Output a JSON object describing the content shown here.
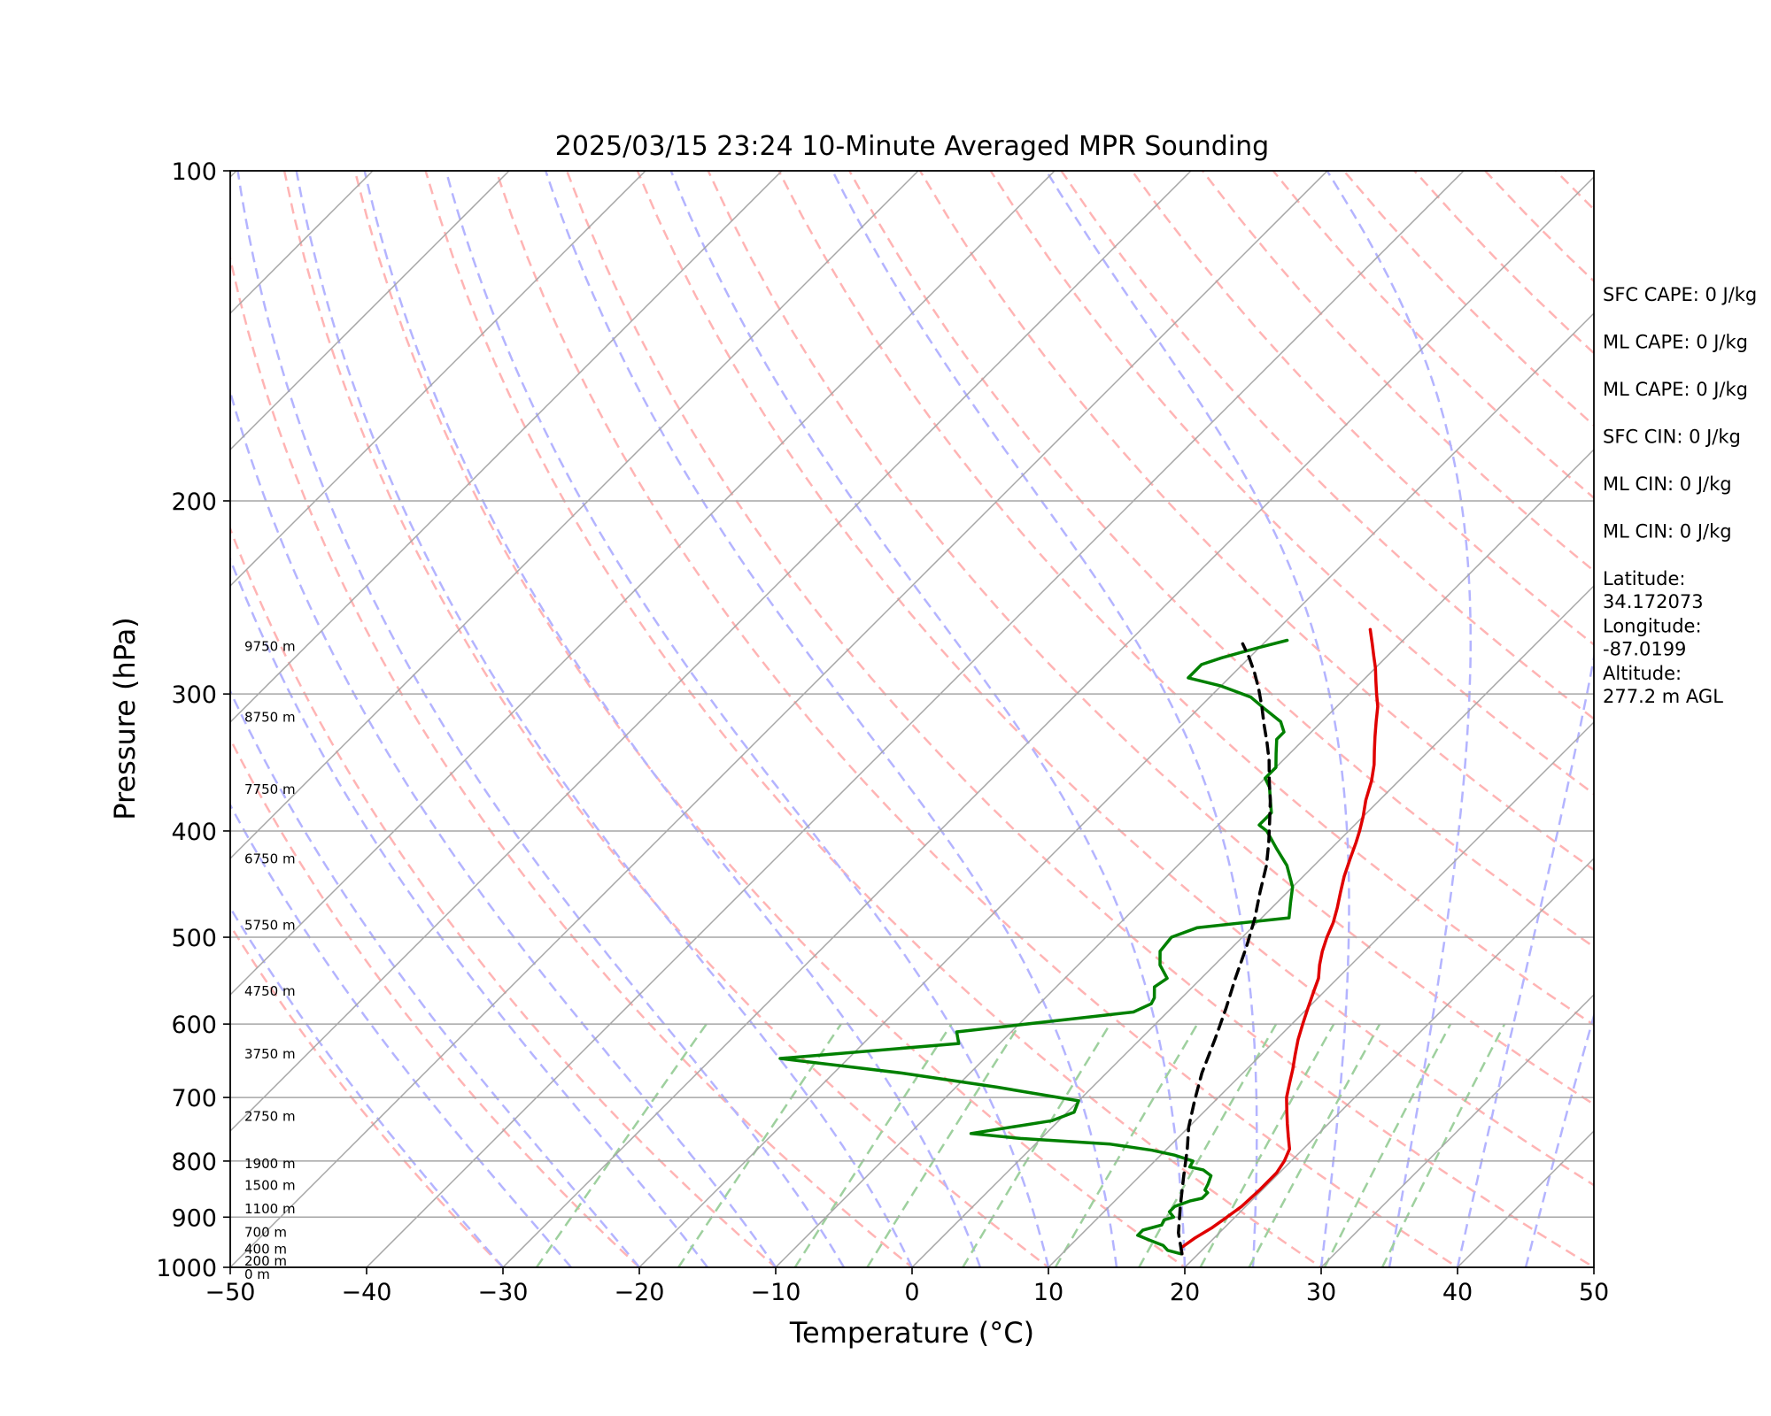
{
  "chart_data": {
    "type": "line",
    "title": "2025/03/15 23:24 10-Minute Averaged MPR Sounding",
    "xlabel": "Temperature (°C)",
    "ylabel": "Pressure (hPa)",
    "xlim": [
      -50,
      50
    ],
    "ylim": [
      1000,
      100
    ],
    "y_scale": "log",
    "grid": true,
    "x_ticks": [
      "−50",
      "−40",
      "−30",
      "−20",
      "−10",
      "0",
      "10",
      "20",
      "30",
      "40",
      "50"
    ],
    "y_ticks": [
      "100",
      "200",
      "300",
      "400",
      "500",
      "600",
      "700",
      "800",
      "900",
      "1000"
    ],
    "series": [
      {
        "color": "#e00000",
        "points": [
          [
            18.8,
            972
          ],
          [
            18.3,
            960
          ],
          [
            18.6,
            940
          ],
          [
            19.1,
            920
          ],
          [
            19.4,
            900
          ],
          [
            19.7,
            880
          ],
          [
            19.8,
            850
          ],
          [
            19.8,
            820
          ],
          [
            19.5,
            800
          ],
          [
            19.0,
            780
          ],
          [
            18.0,
            760
          ],
          [
            17.0,
            740
          ],
          [
            16.0,
            720
          ],
          [
            15.0,
            700
          ],
          [
            14.2,
            680
          ],
          [
            13.4,
            660
          ],
          [
            12.5,
            640
          ],
          [
            11.6,
            620
          ],
          [
            10.8,
            600
          ],
          [
            10.0,
            580
          ],
          [
            9.2,
            560
          ],
          [
            8.6,
            545
          ],
          [
            7.7,
            530
          ],
          [
            6.9,
            515
          ],
          [
            6.2,
            500
          ],
          [
            5.6,
            485
          ],
          [
            4.8,
            470
          ],
          [
            3.9,
            455
          ],
          [
            3.0,
            440
          ],
          [
            2.2,
            425
          ],
          [
            1.4,
            410
          ],
          [
            0.8,
            400
          ],
          [
            0.0,
            388
          ],
          [
            -1.0,
            375
          ],
          [
            -2.0,
            360
          ],
          [
            -3.0,
            348
          ],
          [
            -4.0,
            338
          ],
          [
            -5.0,
            328
          ],
          [
            -6.0,
            318
          ],
          [
            -7.0,
            308
          ],
          [
            -8.0,
            300
          ],
          [
            -9.0,
            292
          ],
          [
            -10.0,
            284
          ],
          [
            -11.0,
            277
          ],
          [
            -12.0,
            270
          ],
          [
            -13.2,
            262
          ]
        ]
      },
      {
        "color": "#008000",
        "points": [
          [
            18.7,
            972
          ],
          [
            17.5,
            965
          ],
          [
            16.8,
            955
          ],
          [
            15.5,
            945
          ],
          [
            14.2,
            935
          ],
          [
            14.2,
            925
          ],
          [
            15.2,
            915
          ],
          [
            15.0,
            905
          ],
          [
            15.5,
            900
          ],
          [
            14.8,
            890
          ],
          [
            14.8,
            880
          ],
          [
            15.5,
            870
          ],
          [
            16.2,
            865
          ],
          [
            16.2,
            855
          ],
          [
            15.8,
            850
          ],
          [
            15.6,
            840
          ],
          [
            15.2,
            825
          ],
          [
            14.2,
            815
          ],
          [
            13.0,
            810
          ],
          [
            12.8,
            800
          ],
          [
            11.0,
            790
          ],
          [
            9.0,
            782
          ],
          [
            5.5,
            772
          ],
          [
            -1.5,
            763
          ],
          [
            -5.5,
            755
          ],
          [
            -0.5,
            735
          ],
          [
            0.5,
            722
          ],
          [
            0.0,
            705
          ],
          [
            -7.0,
            685
          ],
          [
            -15.0,
            665
          ],
          [
            -25.0,
            645
          ],
          [
            -13.0,
            625
          ],
          [
            -14.0,
            610
          ],
          [
            -2.5,
            585
          ],
          [
            -1.8,
            575
          ],
          [
            -2.0,
            568
          ],
          [
            -2.8,
            555
          ],
          [
            -2.5,
            545
          ],
          [
            -4.0,
            530
          ],
          [
            -5.0,
            515
          ],
          [
            -5.2,
            500
          ],
          [
            -4.0,
            490
          ],
          [
            2.0,
            480
          ],
          [
            1.0,
            465
          ],
          [
            0.0,
            450
          ],
          [
            -2.0,
            430
          ],
          [
            -4.0,
            415
          ],
          [
            -6.0,
            400
          ],
          [
            -7.0,
            395
          ],
          [
            -7.0,
            385
          ],
          [
            -8.0,
            375
          ],
          [
            -9.0,
            365
          ],
          [
            -10.0,
            358
          ],
          [
            -10.0,
            350
          ],
          [
            -11.0,
            340
          ],
          [
            -12.0,
            330
          ],
          [
            -12.0,
            325
          ],
          [
            -13.0,
            318
          ],
          [
            -15.0,
            310
          ],
          [
            -17.0,
            302
          ],
          [
            -20.0,
            295
          ],
          [
            -23.0,
            290
          ],
          [
            -23.0,
            282
          ],
          [
            -22.0,
            278
          ],
          [
            -20.0,
            272
          ],
          [
            -18.5,
            268
          ]
        ]
      },
      {
        "color": "#000000",
        "dashed": true,
        "points": [
          [
            18.8,
            972
          ],
          [
            17.0,
            930
          ],
          [
            15.2,
            880
          ],
          [
            13.2,
            825
          ],
          [
            11.5,
            780
          ],
          [
            10.0,
            745
          ],
          [
            8.5,
            705
          ],
          [
            7.0,
            665
          ],
          [
            5.5,
            620
          ],
          [
            4.0,
            580
          ],
          [
            2.5,
            545
          ],
          [
            1.0,
            510
          ],
          [
            -0.5,
            480
          ],
          [
            -2.0,
            455
          ],
          [
            -3.5,
            430
          ],
          [
            -5.0,
            410
          ],
          [
            -6.5,
            392
          ],
          [
            -8.0,
            375
          ],
          [
            -9.5,
            360
          ],
          [
            -11.0,
            345
          ],
          [
            -12.5,
            332
          ],
          [
            -14.0,
            320
          ],
          [
            -15.5,
            308
          ],
          [
            -17.0,
            297
          ],
          [
            -18.5,
            287
          ],
          [
            -20.0,
            278
          ],
          [
            -21.5,
            270
          ]
        ]
      }
    ],
    "height_labels": [
      {
        "text": "9750 m",
        "p": 274
      },
      {
        "text": "8750 m",
        "p": 318
      },
      {
        "text": "7750 m",
        "p": 370
      },
      {
        "text": "6750 m",
        "p": 428
      },
      {
        "text": "5750 m",
        "p": 492
      },
      {
        "text": "4750 m",
        "p": 565
      },
      {
        "text": "3750 m",
        "p": 645
      },
      {
        "text": "2750 m",
        "p": 735
      },
      {
        "text": "1900 m",
        "p": 812
      },
      {
        "text": "1500 m",
        "p": 850
      },
      {
        "text": "1100 m",
        "p": 893
      },
      {
        "text": "700 m",
        "p": 938
      },
      {
        "text": "400 m",
        "p": 972
      },
      {
        "text": "200 m",
        "p": 996
      },
      {
        "text": "0 m",
        "p": 1024
      }
    ]
  },
  "info_panel": [
    {
      "lines": [
        "SFC CAPE: 0 J/kg"
      ]
    },
    {
      "lines": [
        "ML CAPE: 0 J/kg"
      ]
    },
    {
      "lines": [
        "ML CAPE: 0 J/kg"
      ]
    },
    {
      "lines": [
        "SFC CIN: 0 J/kg"
      ]
    },
    {
      "lines": [
        "ML CIN: 0 J/kg"
      ]
    },
    {
      "lines": [
        "ML CIN: 0 J/kg"
      ]
    },
    {
      "lines": [
        "Latitude:",
        "34.172073"
      ]
    },
    {
      "lines": [
        "Longitude:",
        "-87.0199"
      ]
    },
    {
      "lines": [
        "Altitude:",
        "277.2 m AGL"
      ]
    }
  ],
  "colors": {
    "dry_adiabat": "#ffb4b4",
    "moist_adiabat": "#b4b4ff",
    "mixing_ratio": "#9ed09e",
    "isotherm": "#a6a6a6",
    "isobar": "#a6a6a6"
  }
}
